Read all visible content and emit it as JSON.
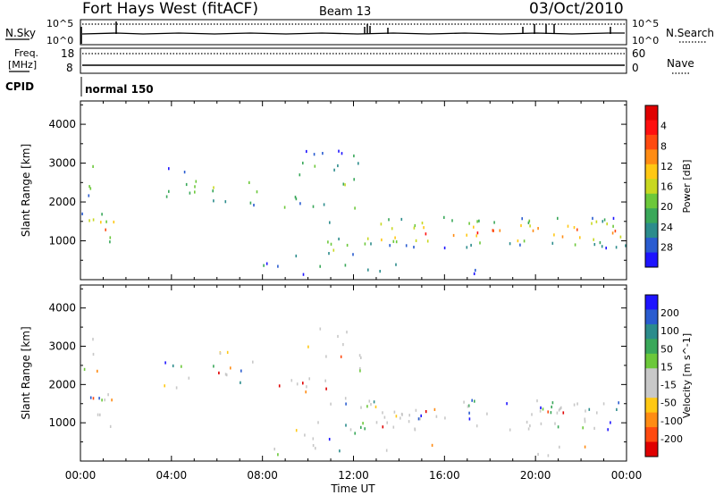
{
  "header": {
    "title": "Fort Hays West (fitACF)",
    "beam": "Beam 13",
    "date": "03/Oct/2010"
  },
  "strip": {
    "nsky_label": "N.Sky",
    "nsky_ticks": [
      "10^5",
      "10^0"
    ],
    "nsearch_label": "N.Search",
    "nsearch_ticks": [
      "10^5",
      "10^0"
    ],
    "freq_label_1": "Freq.",
    "freq_label_2": "[MHz]",
    "freq_ticks": [
      "18",
      "8"
    ],
    "nave_label": "Nave",
    "nave_ticks": [
      "60",
      "0"
    ],
    "cpid_label": "CPID",
    "cpid_value": "normal 150"
  },
  "x_axis": {
    "label": "Time UT",
    "ticks": [
      "00:00",
      "04:00",
      "08:00",
      "12:00",
      "16:00",
      "20:00",
      "00:00"
    ],
    "range_hours": [
      0,
      24
    ]
  },
  "chart_data": [
    {
      "type": "heatmap",
      "panel": "power",
      "ylabel": "Slant Range [km]",
      "ylim": [
        0,
        4600
      ],
      "yticks": [
        1000,
        2000,
        3000,
        4000
      ],
      "colorbar": {
        "label": "Power [dB]",
        "range": [
          0,
          32
        ],
        "ticks": [
          "4",
          "8",
          "12",
          "16",
          "20",
          "24",
          "28"
        ],
        "colors": [
          "#1e14ff",
          "#2a5cd0",
          "#2c8c8c",
          "#3aa85a",
          "#6cc83a",
          "#c8d820",
          "#ffc814",
          "#ff8c14",
          "#ff4a10",
          "#ff1010",
          "#e00000"
        ]
      },
      "regions": [
        {
          "t": [
            0.05,
            1.55
          ],
          "r": [
            900,
            1800
          ],
          "level": 0.6
        },
        {
          "t": [
            0.05,
            0.9
          ],
          "r": [
            2000,
            3300
          ],
          "level": 0.3
        },
        {
          "t": [
            3.5,
            8.0
          ],
          "r": [
            1900,
            2900
          ],
          "level": 0.3
        },
        {
          "t": [
            8.0,
            9.6
          ],
          "r": [
            1850,
            2200
          ],
          "level": 0.5
        },
        {
          "t": [
            9.6,
            12.3
          ],
          "r": [
            1500,
            3500
          ],
          "level": 0.3
        },
        {
          "t": [
            12.3,
            24.0
          ],
          "r": [
            850,
            1650
          ],
          "level": 0.65
        },
        {
          "t": [
            9.3,
            12.6
          ],
          "r": [
            600,
            1100
          ],
          "level": 0.45
        },
        {
          "t": [
            8.0,
            22.5
          ],
          "r": [
            150,
            450
          ],
          "level": 0.2
        }
      ]
    },
    {
      "type": "heatmap",
      "panel": "velocity",
      "ylabel": "Slant Range [km]",
      "ylim": [
        0,
        4600
      ],
      "yticks": [
        1000,
        2000,
        3000,
        4000
      ],
      "colorbar": {
        "label": "Velocity [m s^-1]",
        "range": [
          -250,
          250
        ],
        "ticks": [
          "200",
          "100",
          "50",
          "15",
          "-15",
          "-50",
          "-100",
          "-200"
        ],
        "colors": [
          "#e00000",
          "#ff4a10",
          "#ff8c14",
          "#ffc814",
          "#c8c8c8",
          "#c8c8c8",
          "#6cc83a",
          "#3aa85a",
          "#2c8c8c",
          "#2a5cd0",
          "#1e14ff"
        ]
      },
      "regions": [
        {
          "t": [
            0.05,
            1.55
          ],
          "r": [
            900,
            1800
          ],
          "level": 0.6
        },
        {
          "t": [
            0.05,
            0.9
          ],
          "r": [
            2000,
            3300
          ],
          "level": 0.3
        },
        {
          "t": [
            3.5,
            8.0
          ],
          "r": [
            1900,
            2900
          ],
          "level": 0.3
        },
        {
          "t": [
            8.0,
            9.6
          ],
          "r": [
            1850,
            2200
          ],
          "level": 0.5
        },
        {
          "t": [
            9.6,
            12.3
          ],
          "r": [
            1500,
            3500
          ],
          "level": 0.3
        },
        {
          "t": [
            12.3,
            24.0
          ],
          "r": [
            850,
            1650
          ],
          "level": 0.65
        },
        {
          "t": [
            9.3,
            12.6
          ],
          "r": [
            600,
            1100
          ],
          "level": 0.45
        },
        {
          "t": [
            8.0,
            22.5
          ],
          "r": [
            150,
            450
          ],
          "level": 0.2
        }
      ]
    }
  ]
}
